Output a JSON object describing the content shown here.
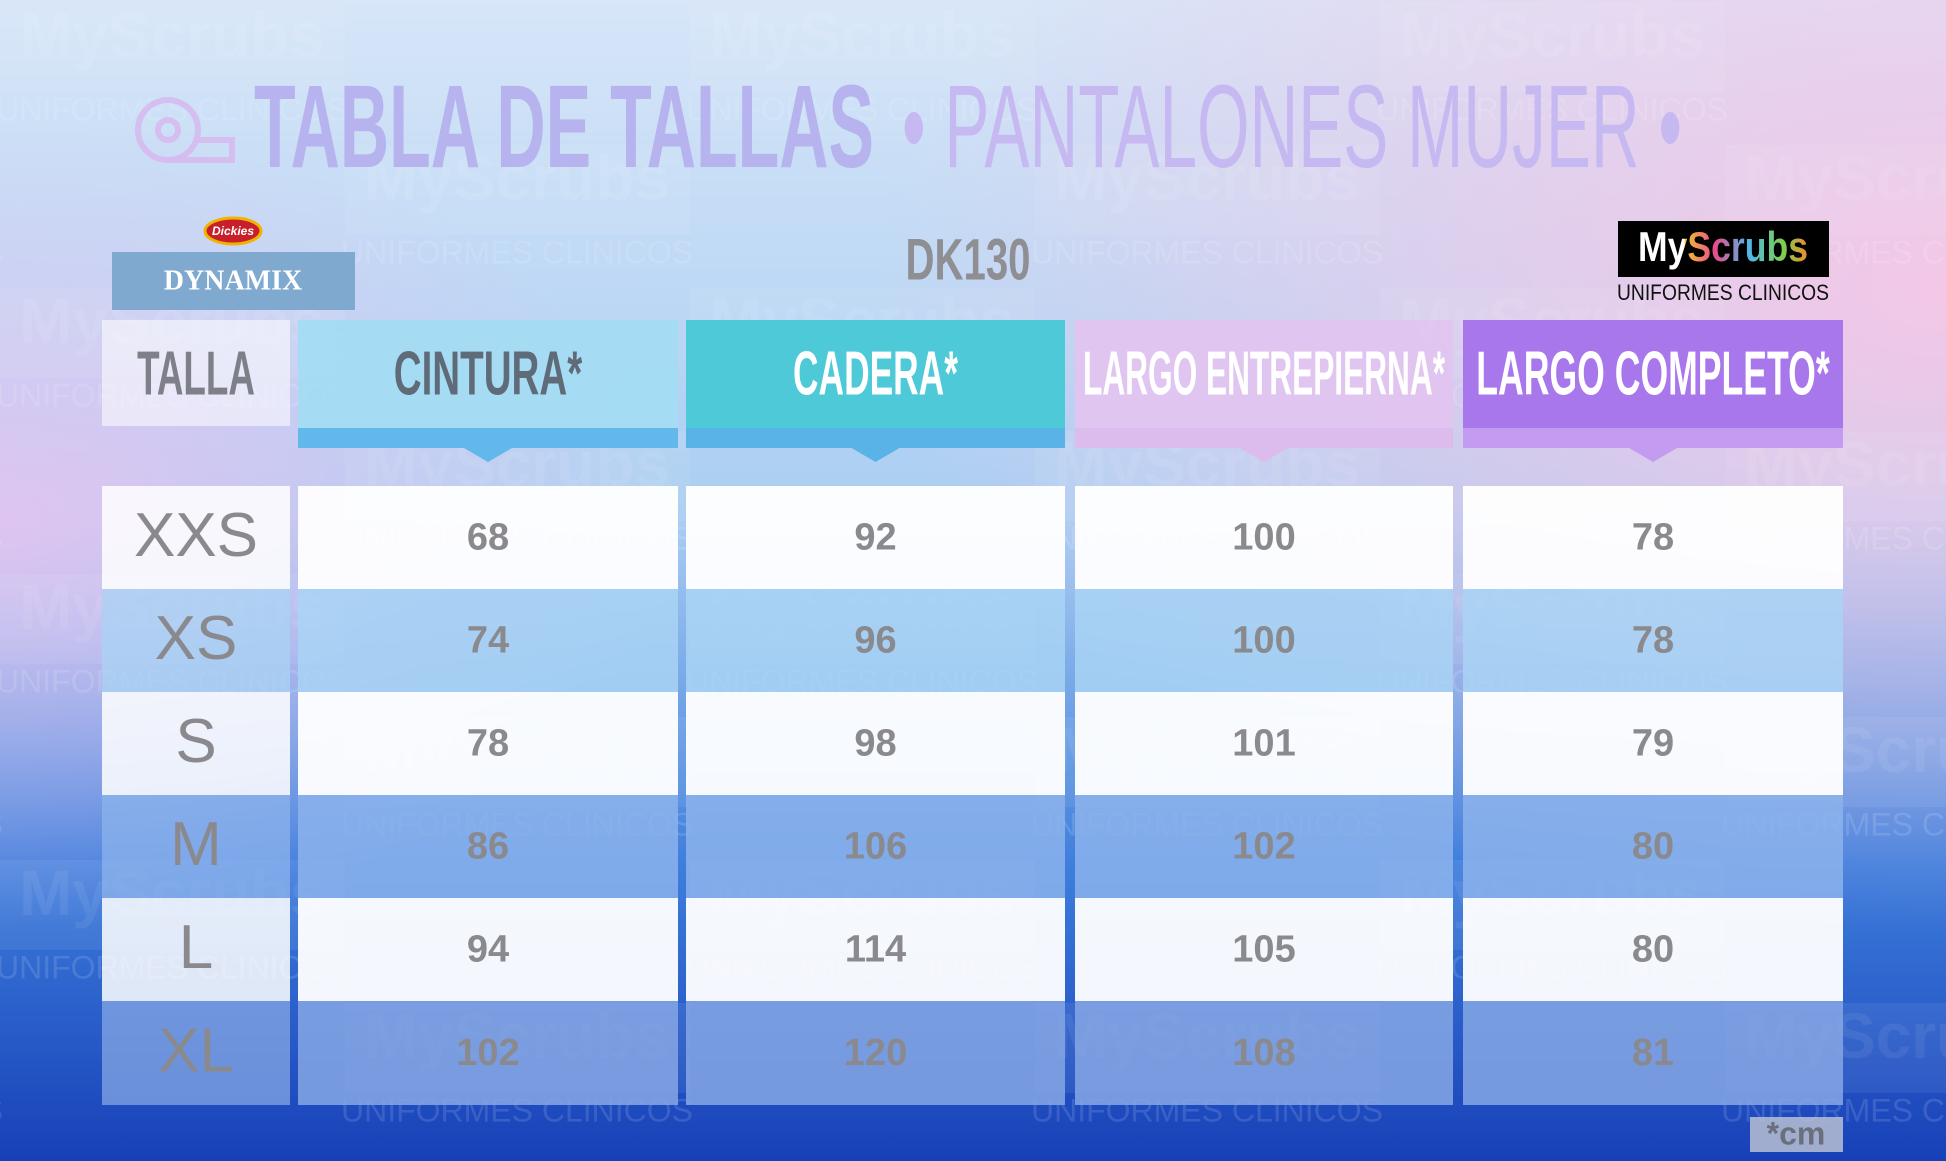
{
  "header": {
    "title": "TABLA DE TALLAS",
    "subtitle": "• PANTALONES MUJER •"
  },
  "brand": {
    "logo": "Dickies",
    "name": "DYNAMIX"
  },
  "model": "DK130",
  "store": {
    "name": "MyScrubs",
    "tagline": "UNIFORMES CLINICOS"
  },
  "table": {
    "columns": [
      "TALLA",
      "CINTURA*",
      "CADERA*",
      "LARGO ENTREPIERNA*",
      "LARGO COMPLETO*"
    ],
    "rows": [
      [
        "XXS",
        68,
        92,
        100,
        78
      ],
      [
        "XS",
        74,
        96,
        100,
        78
      ],
      [
        "S",
        78,
        98,
        101,
        79
      ],
      [
        "M",
        86,
        106,
        102,
        80
      ],
      [
        "L",
        94,
        114,
        105,
        80
      ],
      [
        "XL",
        102,
        120,
        108,
        81
      ]
    ]
  },
  "footnote": "*cm",
  "watermark": {
    "name": "MyScrubs",
    "tagline": "UNIFORMES CLINICOS"
  }
}
